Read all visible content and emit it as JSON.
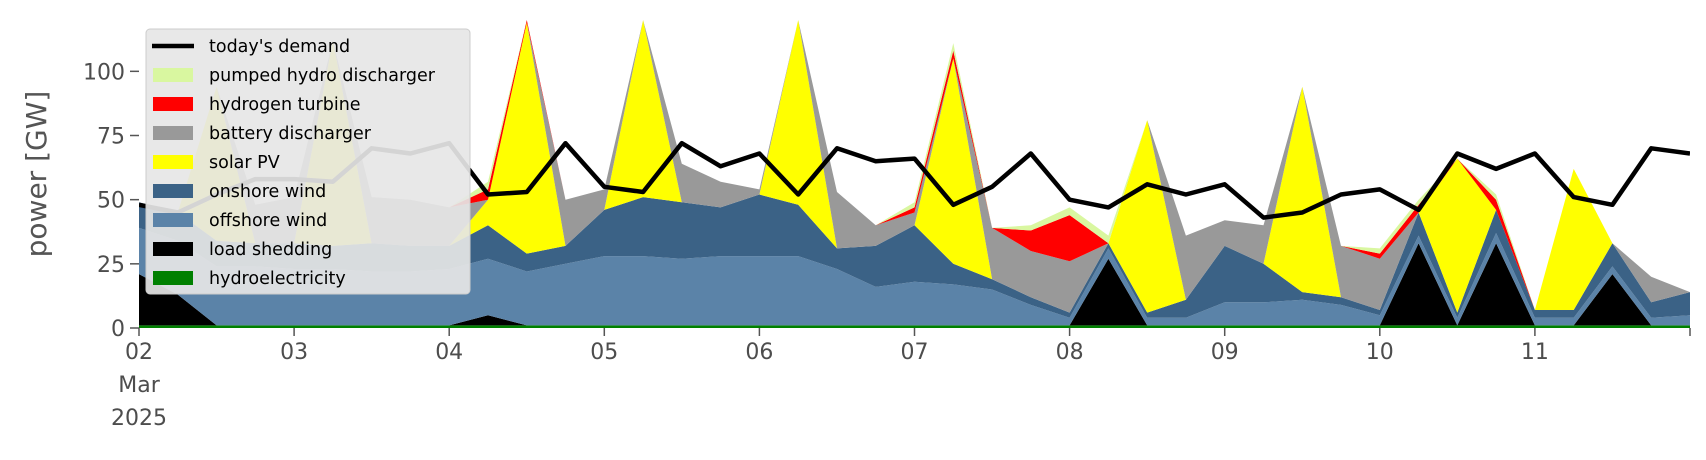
{
  "chart_data": {
    "type": "area",
    "title": "",
    "xlabel": "",
    "ylabel": "power [GW]",
    "ylim": [
      0,
      120
    ],
    "xlim": [
      "2025-03-02",
      "2025-03-12"
    ],
    "y_ticks": [
      "0",
      "25",
      "50",
      "75",
      "100"
    ],
    "x_ticks": [
      "02",
      "03",
      "04",
      "05",
      "06",
      "07",
      "08",
      "09",
      "10",
      "11"
    ],
    "x_ticks_sub": [
      "Mar",
      "2025"
    ],
    "grid": false,
    "legend_position": "upper-left",
    "x": [
      "2025-03-02 00:00",
      "2025-03-02 06:00",
      "2025-03-02 12:00",
      "2025-03-02 18:00",
      "2025-03-03 00:00",
      "2025-03-03 06:00",
      "2025-03-03 12:00",
      "2025-03-03 18:00",
      "2025-03-04 00:00",
      "2025-03-04 06:00",
      "2025-03-04 12:00",
      "2025-03-04 18:00",
      "2025-03-05 00:00",
      "2025-03-05 06:00",
      "2025-03-05 12:00",
      "2025-03-05 18:00",
      "2025-03-06 00:00",
      "2025-03-06 06:00",
      "2025-03-06 12:00",
      "2025-03-06 18:00",
      "2025-03-07 00:00",
      "2025-03-07 06:00",
      "2025-03-07 12:00",
      "2025-03-07 18:00",
      "2025-03-08 00:00",
      "2025-03-08 06:00",
      "2025-03-08 12:00",
      "2025-03-08 18:00",
      "2025-03-09 00:00",
      "2025-03-09 06:00",
      "2025-03-09 12:00",
      "2025-03-09 18:00",
      "2025-03-10 00:00",
      "2025-03-10 06:00",
      "2025-03-10 12:00",
      "2025-03-10 18:00",
      "2025-03-11 00:00",
      "2025-03-11 06:00",
      "2025-03-11 12:00",
      "2025-03-11 18:00",
      "2025-03-12 00:00"
    ],
    "series": [
      {
        "name": "hydroelectricity",
        "color": "#008000",
        "values": [
          1,
          1,
          1,
          1,
          1,
          1,
          1,
          1,
          1,
          1,
          1,
          1,
          1,
          1,
          1,
          1,
          1,
          1,
          1,
          1,
          1,
          1,
          1,
          1,
          1,
          1,
          1,
          1,
          1,
          1,
          1,
          1,
          1,
          1,
          1,
          1,
          1,
          1,
          1,
          1,
          1
        ]
      },
      {
        "name": "load shedding",
        "color": "#000000",
        "values": [
          20,
          12,
          0,
          0,
          0,
          0,
          0,
          0,
          0,
          4,
          0,
          0,
          0,
          0,
          0,
          0,
          0,
          0,
          0,
          0,
          0,
          0,
          0,
          0,
          0,
          26,
          0,
          0,
          0,
          0,
          0,
          0,
          0,
          32,
          0,
          32,
          0,
          0,
          20,
          0,
          0
        ]
      },
      {
        "name": "offshore wind",
        "color": "#5b83a8",
        "values": [
          18,
          21,
          23,
          23,
          22,
          22,
          21,
          21,
          22,
          22,
          21,
          24,
          27,
          27,
          26,
          27,
          27,
          27,
          22,
          15,
          17,
          16,
          14,
          8,
          3,
          4,
          3,
          3,
          9,
          9,
          10,
          8,
          4,
          3,
          3,
          4,
          3,
          3,
          3,
          3,
          4
        ]
      },
      {
        "name": "onshore wind",
        "color": "#3b6286",
        "values": [
          10,
          11,
          10,
          9,
          10,
          9,
          11,
          10,
          9,
          13,
          7,
          7,
          18,
          23,
          22,
          19,
          24,
          20,
          8,
          16,
          22,
          8,
          4,
          3,
          2,
          2,
          2,
          7,
          22,
          15,
          3,
          3,
          2,
          9,
          2,
          9,
          3,
          3,
          9,
          6,
          9
        ]
      },
      {
        "name": "solar PV",
        "color": "#ffff00",
        "values": [
          0,
          0,
          60,
          0,
          0,
          80,
          0,
          0,
          0,
          10,
          90,
          0,
          0,
          85,
          0,
          0,
          0,
          80,
          0,
          0,
          0,
          80,
          0,
          0,
          0,
          0,
          75,
          0,
          0,
          0,
          80,
          0,
          0,
          0,
          60,
          0,
          0,
          55,
          0,
          0,
          0
        ]
      },
      {
        "name": "battery discharger",
        "color": "#999999",
        "values": [
          0,
          0,
          0,
          15,
          18,
          0,
          18,
          18,
          15,
          0,
          0,
          18,
          8,
          0,
          15,
          10,
          2,
          0,
          22,
          8,
          5,
          0,
          20,
          18,
          20,
          0,
          0,
          25,
          10,
          15,
          0,
          20,
          20,
          0,
          0,
          0,
          0,
          0,
          0,
          10,
          0
        ]
      },
      {
        "name": "hydrogen turbine",
        "color": "#ff0000",
        "values": [
          0,
          0,
          0,
          0,
          0,
          0,
          0,
          0,
          0,
          4,
          3,
          0,
          0,
          0,
          0,
          0,
          0,
          0,
          0,
          0,
          2,
          3,
          0,
          8,
          18,
          0,
          0,
          0,
          0,
          0,
          0,
          0,
          2,
          3,
          0,
          4,
          0,
          0,
          0,
          0,
          0
        ]
      },
      {
        "name": "pumped hydro discharger",
        "color": "#d9f7a0",
        "values": [
          0,
          0,
          0,
          0,
          0,
          0,
          0,
          0,
          0,
          3,
          3,
          0,
          0,
          0,
          0,
          0,
          0,
          0,
          0,
          0,
          2,
          3,
          0,
          2,
          3,
          3,
          0,
          0,
          0,
          0,
          0,
          0,
          2,
          2,
          0,
          2,
          0,
          0,
          0,
          0,
          0
        ]
      }
    ],
    "demand": {
      "name": "today's demand",
      "color": "#000000",
      "values": [
        48,
        45,
        52,
        58,
        58,
        57,
        70,
        68,
        72,
        52,
        53,
        72,
        55,
        53,
        72,
        63,
        68,
        52,
        70,
        65,
        66,
        48,
        55,
        68,
        50,
        47,
        56,
        52,
        56,
        43,
        45,
        52,
        54,
        46,
        68,
        62,
        68,
        51,
        48,
        70,
        68
      ]
    },
    "legend": [
      "today's demand",
      "pumped hydro discharger",
      "hydrogen turbine",
      "battery discharger",
      "solar PV",
      "onshore wind",
      "offshore wind",
      "load shedding",
      "hydroelectricity"
    ]
  }
}
